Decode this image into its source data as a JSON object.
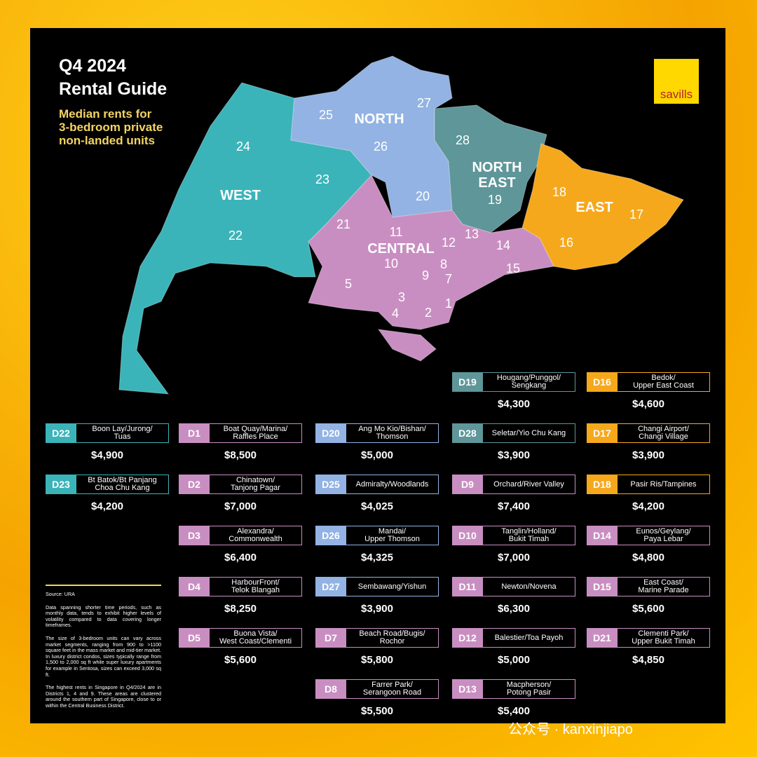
{
  "header": {
    "title": [
      "Q4 2024",
      "Rental Guide"
    ],
    "subtitle": [
      "Median rents for",
      "3-bedroom private",
      "non-landed units"
    ]
  },
  "logo": "savills",
  "map": {
    "regions": [
      {
        "lines": [
          "WEST"
        ],
        "color": "#3bb4b9"
      },
      {
        "lines": [
          "NORTH"
        ],
        "color": "#92b3e3"
      },
      {
        "lines": [
          "NORTH",
          "EAST"
        ],
        "color": "#5e9699"
      },
      {
        "lines": [
          "EAST"
        ],
        "color": "#f6a81c"
      },
      {
        "lines": [
          "CENTRAL"
        ],
        "color": "#c98ec1"
      }
    ],
    "districts": [
      "24",
      "25",
      "27",
      "26",
      "23",
      "20",
      "28",
      "19",
      "18",
      "17",
      "16",
      "22",
      "21",
      "11",
      "13",
      "12",
      "14",
      "8",
      "10",
      "15",
      "9",
      "7",
      "5",
      "3",
      "1",
      "4",
      "2"
    ]
  },
  "columns": [
    [
      {
        "code": "D22",
        "area": [
          "Boon Lay/Jurong/",
          "Tuas"
        ],
        "rent": "$4,900",
        "color": "#3bb4b9"
      },
      {
        "code": "D23",
        "area": [
          "Bt Batok/Bt Panjang",
          "Choa Chu Kang"
        ],
        "rent": "$4,200",
        "color": "#3bb4b9"
      }
    ],
    [
      {
        "code": "D1",
        "area": [
          "Boat Quay/Marina/",
          "Raffles Place"
        ],
        "rent": "$8,500",
        "color": "#c98ec1"
      },
      {
        "code": "D2",
        "area": [
          "Chinatown/",
          "Tanjong Pagar"
        ],
        "rent": "$7,000",
        "color": "#c98ec1"
      },
      {
        "code": "D3",
        "area": [
          "Alexandra/",
          "Commonwealth"
        ],
        "rent": "$6,400",
        "color": "#c98ec1"
      },
      {
        "code": "D4",
        "area": [
          "HarbourFront/",
          "Telok Blangah"
        ],
        "rent": "$8,250",
        "color": "#c98ec1"
      },
      {
        "code": "D5",
        "area": [
          "Buona Vista/",
          "West Coast/Clementi"
        ],
        "rent": "$5,600",
        "color": "#c98ec1"
      }
    ],
    [
      {
        "code": "D20",
        "area": [
          "Ang Mo Kio/Bishan/",
          "Thomson"
        ],
        "rent": "$5,000",
        "color": "#92b3e3"
      },
      {
        "code": "D25",
        "area": [
          "Admiralty/Woodlands"
        ],
        "rent": "$4,025",
        "color": "#92b3e3"
      },
      {
        "code": "D26",
        "area": [
          "Mandai/",
          "Upper Thomson"
        ],
        "rent": "$4,325",
        "color": "#92b3e3"
      },
      {
        "code": "D27",
        "area": [
          "Sembawang/Yishun"
        ],
        "rent": "$3,900",
        "color": "#92b3e3"
      },
      {
        "code": "D7",
        "area": [
          "Beach Road/Bugis/",
          "Rochor"
        ],
        "rent": "$5,800",
        "color": "#c98ec1"
      },
      {
        "code": "D8",
        "area": [
          "Farrer Park/",
          "Serangoon Road"
        ],
        "rent": "$5,500",
        "color": "#c98ec1"
      }
    ],
    [
      {
        "code": "D19",
        "area": [
          "Hougang/Punggol/",
          "Sengkang"
        ],
        "rent": "$4,300",
        "color": "#5e9699"
      },
      {
        "code": "D28",
        "area": [
          "Seletar/Yio Chu Kang"
        ],
        "rent": "$3,900",
        "color": "#5e9699"
      },
      {
        "code": "D9",
        "area": [
          "Orchard/River Valley"
        ],
        "rent": "$7,400",
        "color": "#c98ec1"
      },
      {
        "code": "D10",
        "area": [
          "Tanglin/Holland/",
          "Bukit Timah"
        ],
        "rent": "$7,000",
        "color": "#c98ec1"
      },
      {
        "code": "D11",
        "area": [
          "Newton/Novena"
        ],
        "rent": "$6,300",
        "color": "#c98ec1"
      },
      {
        "code": "D12",
        "area": [
          "Balestier/Toa Payoh"
        ],
        "rent": "$5,000",
        "color": "#c98ec1"
      },
      {
        "code": "D13",
        "area": [
          "Macpherson/",
          "Potong Pasir"
        ],
        "rent": "$5,400",
        "color": "#c98ec1"
      }
    ],
    [
      {
        "code": "D16",
        "area": [
          "Bedok/",
          "Upper East Coast"
        ],
        "rent": "$4,600",
        "color": "#f6a81c"
      },
      {
        "code": "D17",
        "area": [
          "Changi Airport/",
          "Changi Village"
        ],
        "rent": "$3,900",
        "color": "#f6a81c"
      },
      {
        "code": "D18",
        "area": [
          "Pasir Ris/Tampines"
        ],
        "rent": "$4,200",
        "color": "#f6a81c"
      },
      {
        "code": "D14",
        "area": [
          "Eunos/Geylang/",
          "Paya Lebar"
        ],
        "rent": "$4,800",
        "color": "#c98ec1"
      },
      {
        "code": "D15",
        "area": [
          "East Coast/",
          "Marine Parade"
        ],
        "rent": "$5,600",
        "color": "#c98ec1"
      },
      {
        "code": "D21",
        "area": [
          "Clementi Park/",
          "Upper Bukit Timah"
        ],
        "rent": "$4,850",
        "color": "#c98ec1"
      }
    ]
  ],
  "notes": [
    "Source: URA",
    "Data spanning shorter time periods, such as monthly data, tends to exhibit higher levels of volatility compared to data covering longer timeframes.",
    "The size of 3-bedroom units can vary across market segments, ranging from 900 to >1100 square feet in the mass market and mid-tier market. In luxury district condos, sizes typically range from 1,500 to 2,000 sq ft while super luxury apartments for example in Sentosa, sizes can exceed 3,000 sq ft.",
    "The highest rents in Singapore in Q4/2024 are in Districts 1, 4 and 9. These areas are clustered around the southern part of Singapore, close to or within the Central Business District."
  ],
  "watermark": "公众号 · kanxinjiapo"
}
